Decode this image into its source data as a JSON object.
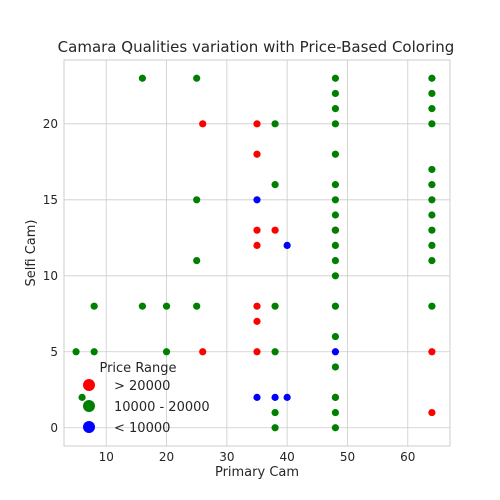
{
  "chart_data": {
    "type": "scatter",
    "title": "Camara Qualities variation with Price-Based Coloring",
    "xlabel": "Primary Cam",
    "ylabel": "Selfi Cam)",
    "xlim": [
      3.0,
      67.0
    ],
    "ylim": [
      -1.2,
      24.2
    ],
    "xticks": [
      10,
      20,
      30,
      40,
      50,
      60
    ],
    "yticks": [
      0,
      5,
      10,
      15,
      20
    ],
    "grid": true,
    "legend": {
      "title": "Price Range",
      "placement": "lower-left"
    },
    "colors": {
      "high": "#ff0000",
      "mid": "#008000",
      "low": "#0000ff"
    },
    "series": [
      {
        "name": "> 20000",
        "key": "high",
        "points": [
          [
            26,
            20
          ],
          [
            35,
            20
          ],
          [
            35,
            18
          ],
          [
            35,
            13
          ],
          [
            38,
            13
          ],
          [
            35,
            12
          ],
          [
            48,
            13
          ],
          [
            35,
            8
          ],
          [
            35,
            7
          ],
          [
            26,
            5
          ],
          [
            35,
            5
          ],
          [
            64,
            5
          ],
          [
            48,
            2
          ],
          [
            64,
            1
          ]
        ]
      },
      {
        "name": "10000 - 20000",
        "key": "mid",
        "points": [
          [
            16,
            23
          ],
          [
            25,
            23
          ],
          [
            48,
            23
          ],
          [
            64,
            23
          ],
          [
            48,
            22
          ],
          [
            64,
            22
          ],
          [
            48,
            21
          ],
          [
            64,
            21
          ],
          [
            38,
            20
          ],
          [
            48,
            20
          ],
          [
            64,
            20
          ],
          [
            48,
            18
          ],
          [
            64,
            17
          ],
          [
            38,
            16
          ],
          [
            48,
            16
          ],
          [
            64,
            16
          ],
          [
            25,
            15
          ],
          [
            48,
            15
          ],
          [
            64,
            15
          ],
          [
            48,
            14
          ],
          [
            64,
            14
          ],
          [
            48,
            13
          ],
          [
            64,
            13
          ],
          [
            48,
            12
          ],
          [
            64,
            12
          ],
          [
            25,
            11
          ],
          [
            48,
            11
          ],
          [
            64,
            11
          ],
          [
            48,
            10
          ],
          [
            8,
            8
          ],
          [
            16,
            8
          ],
          [
            20,
            8
          ],
          [
            25,
            8
          ],
          [
            38,
            8
          ],
          [
            48,
            8
          ],
          [
            64,
            8
          ],
          [
            48,
            6
          ],
          [
            5,
            5
          ],
          [
            8,
            5
          ],
          [
            20,
            5
          ],
          [
            38,
            5
          ],
          [
            48,
            4
          ],
          [
            6,
            2
          ],
          [
            48,
            2
          ],
          [
            38,
            1
          ],
          [
            48,
            1
          ],
          [
            38,
            0
          ],
          [
            48,
            0
          ]
        ]
      },
      {
        "name": "< 10000",
        "key": "low",
        "points": [
          [
            35,
            15
          ],
          [
            40,
            12
          ],
          [
            48,
            5
          ],
          [
            35,
            2
          ],
          [
            38,
            2
          ],
          [
            40,
            2
          ]
        ]
      }
    ]
  }
}
